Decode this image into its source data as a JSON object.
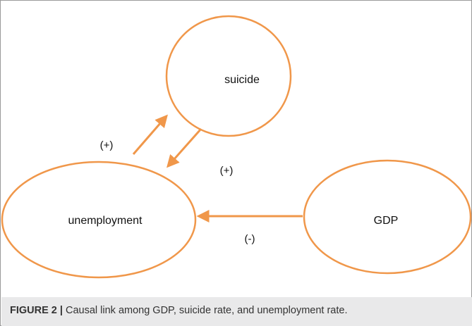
{
  "nodes": {
    "suicide": "suicide",
    "unemployment": "unemployment",
    "gdp": "GDP"
  },
  "edge_labels": {
    "unemployment_to_suicide": "(+)",
    "suicide_to_unemployment": "(+)",
    "gdp_to_unemployment": "(-)"
  },
  "caption": {
    "label": "FIGURE 2 |",
    "text": " Causal link among GDP, suicide rate, and unemployment rate."
  },
  "colors": {
    "stroke": "#f0974a",
    "caption_bg": "#e9e9ea"
  }
}
